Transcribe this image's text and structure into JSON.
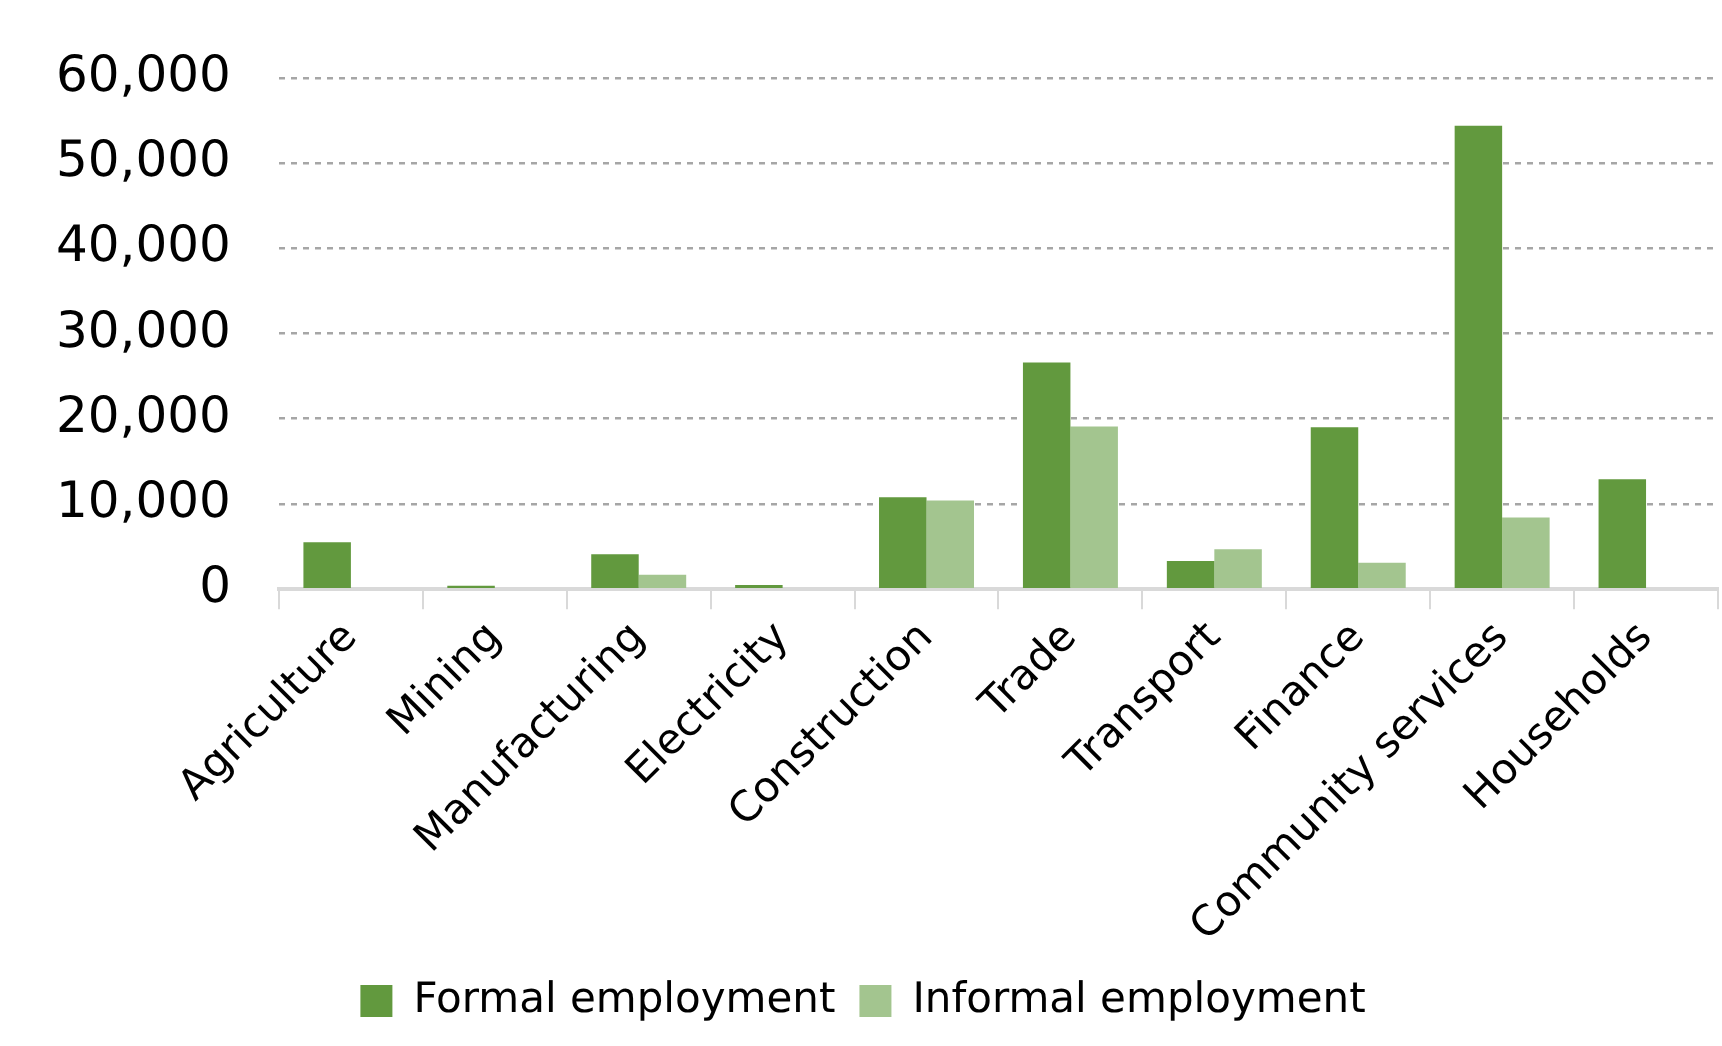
{
  "chart_data": {
    "type": "bar",
    "categories": [
      "Agriculture",
      "Mining",
      "Manufacturing",
      "Electricity",
      "Construction",
      "Trade",
      "Transport",
      "Finance",
      "Community services",
      "Households"
    ],
    "series": [
      {
        "name": "Formal employment",
        "color": "#62993e",
        "values": [
          5500,
          400,
          4100,
          500,
          10800,
          26600,
          3300,
          19000,
          54400,
          12900
        ]
      },
      {
        "name": "Informal employment",
        "color": "#a3c58f",
        "values": [
          0,
          0,
          1700,
          0,
          10400,
          19100,
          4700,
          3100,
          8400,
          0
        ]
      }
    ],
    "ylim": [
      0,
      60000
    ],
    "yticks": [
      0,
      {
        "value": 10000,
        "label": "10,000"
      },
      {
        "value": 20000,
        "label": "20,000"
      },
      {
        "value": 30000,
        "label": "30,000"
      },
      {
        "value": 40000,
        "label": "40,000"
      },
      {
        "value": 50000,
        "label": "50,000"
      },
      {
        "value": 60000,
        "label": "60,000"
      }
    ],
    "grid": "y",
    "legend": "bottom"
  }
}
